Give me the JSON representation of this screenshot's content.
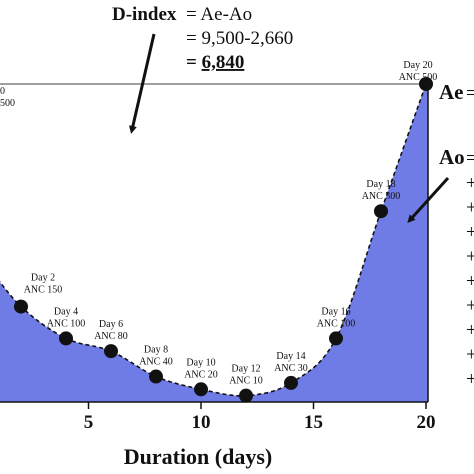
{
  "formula": {
    "label": "D-index",
    "line1": "= Ae-Ao",
    "line2": "= 9,500-2,660",
    "line3_prefix": "= ",
    "line3_value": "6,840"
  },
  "right_labels": {
    "ae": "Ae",
    "ae_sign": "=",
    "ao": "Ao",
    "ao_sign": "=",
    "plus": "+"
  },
  "chart_data": {
    "type": "area",
    "xlabel": "Duration (days)",
    "ylabel": "",
    "xlim": [
      0,
      20
    ],
    "ylim": [
      0,
      500
    ],
    "x_ticks": [
      "5",
      "10",
      "15",
      "20"
    ],
    "x_tick_values": [
      5,
      10,
      15,
      20
    ],
    "reference_line": {
      "y": 500,
      "left_label_day": "0",
      "left_label_anc": "500"
    },
    "points": [
      {
        "day": 2,
        "anc": 150,
        "label_day": "Day 2",
        "label_anc": "ANC 150"
      },
      {
        "day": 4,
        "anc": 100,
        "label_day": "Day 4",
        "label_anc": "ANC 100"
      },
      {
        "day": 6,
        "anc": 80,
        "label_day": "Day 6",
        "label_anc": "ANC 80"
      },
      {
        "day": 8,
        "anc": 40,
        "label_day": "Day 8",
        "label_anc": "ANC 40"
      },
      {
        "day": 10,
        "anc": 20,
        "label_day": "Day 10",
        "label_anc": "ANC 20"
      },
      {
        "day": 12,
        "anc": 10,
        "label_day": "Day 12",
        "label_anc": "ANC 10"
      },
      {
        "day": 14,
        "anc": 30,
        "label_day": "Day 14",
        "label_anc": "ANC 30"
      },
      {
        "day": 16,
        "anc": 100,
        "label_day": "Day 16",
        "label_anc": "ANC 100"
      },
      {
        "day": 18,
        "anc": 300,
        "label_day": "Day 18",
        "label_anc": "ANC 300"
      },
      {
        "day": 20,
        "anc": 500,
        "label_day": "Day 20",
        "label_anc": "ANC 500"
      }
    ],
    "fill_color": "#6f7ce6",
    "curve_color": "#111111"
  }
}
